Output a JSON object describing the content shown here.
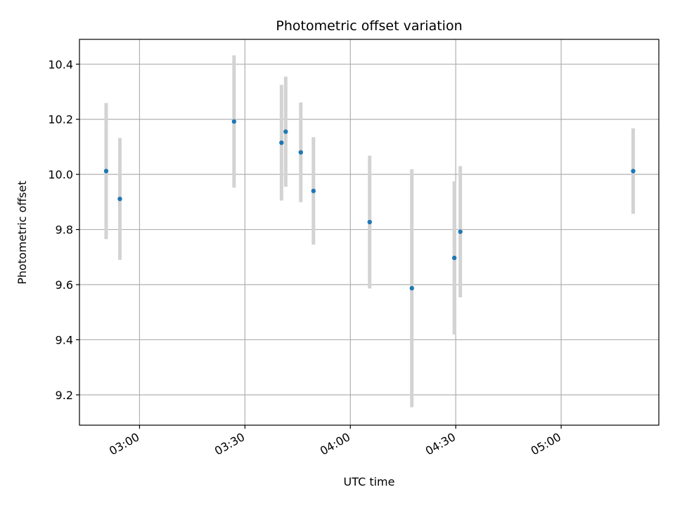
{
  "chart_data": {
    "type": "scatter",
    "title": "Photometric offset variation",
    "xlabel": "UTC time",
    "ylabel": "Photometric offset",
    "x_ticks": [
      "03:00",
      "03:30",
      "04:00",
      "04:30",
      "05:00"
    ],
    "x_tick_minutes": [
      180,
      210,
      240,
      270,
      300
    ],
    "xlim_minutes": [
      162.9,
      327.8
    ],
    "y_ticks": [
      "9.2",
      "9.4",
      "9.6",
      "9.8",
      "10.0",
      "10.2",
      "10.4"
    ],
    "y_tick_values": [
      9.2,
      9.4,
      9.6,
      9.8,
      10.0,
      10.2,
      10.4
    ],
    "ylim": [
      9.09,
      10.49
    ],
    "grid": true,
    "marker_color": "#1f77b4",
    "errorbar_color": "#d3d3d3",
    "points": [
      {
        "time": "02:50:30",
        "minutes": 170.5,
        "y": 10.012,
        "yerr": 0.247
      },
      {
        "time": "02:54:24",
        "minutes": 174.4,
        "y": 9.911,
        "yerr": 0.221
      },
      {
        "time": "03:26:54",
        "minutes": 206.9,
        "y": 10.192,
        "yerr": 0.24
      },
      {
        "time": "03:40:24",
        "minutes": 220.4,
        "y": 10.115,
        "yerr": 0.21
      },
      {
        "time": "03:41:36",
        "minutes": 221.6,
        "y": 10.155,
        "yerr": 0.2
      },
      {
        "time": "03:45:54",
        "minutes": 225.9,
        "y": 10.08,
        "yerr": 0.181
      },
      {
        "time": "03:49:30",
        "minutes": 229.5,
        "y": 9.94,
        "yerr": 0.195
      },
      {
        "time": "04:05:30",
        "minutes": 245.5,
        "y": 9.827,
        "yerr": 0.241
      },
      {
        "time": "04:17:30",
        "minutes": 257.5,
        "y": 9.587,
        "yerr": 0.432
      },
      {
        "time": "04:29:36",
        "minutes": 269.6,
        "y": 9.697,
        "yerr": 0.278
      },
      {
        "time": "04:31:18",
        "minutes": 271.3,
        "y": 9.792,
        "yerr": 0.238
      },
      {
        "time": "05:20:30",
        "minutes": 320.5,
        "y": 10.012,
        "yerr": 0.155
      }
    ]
  }
}
